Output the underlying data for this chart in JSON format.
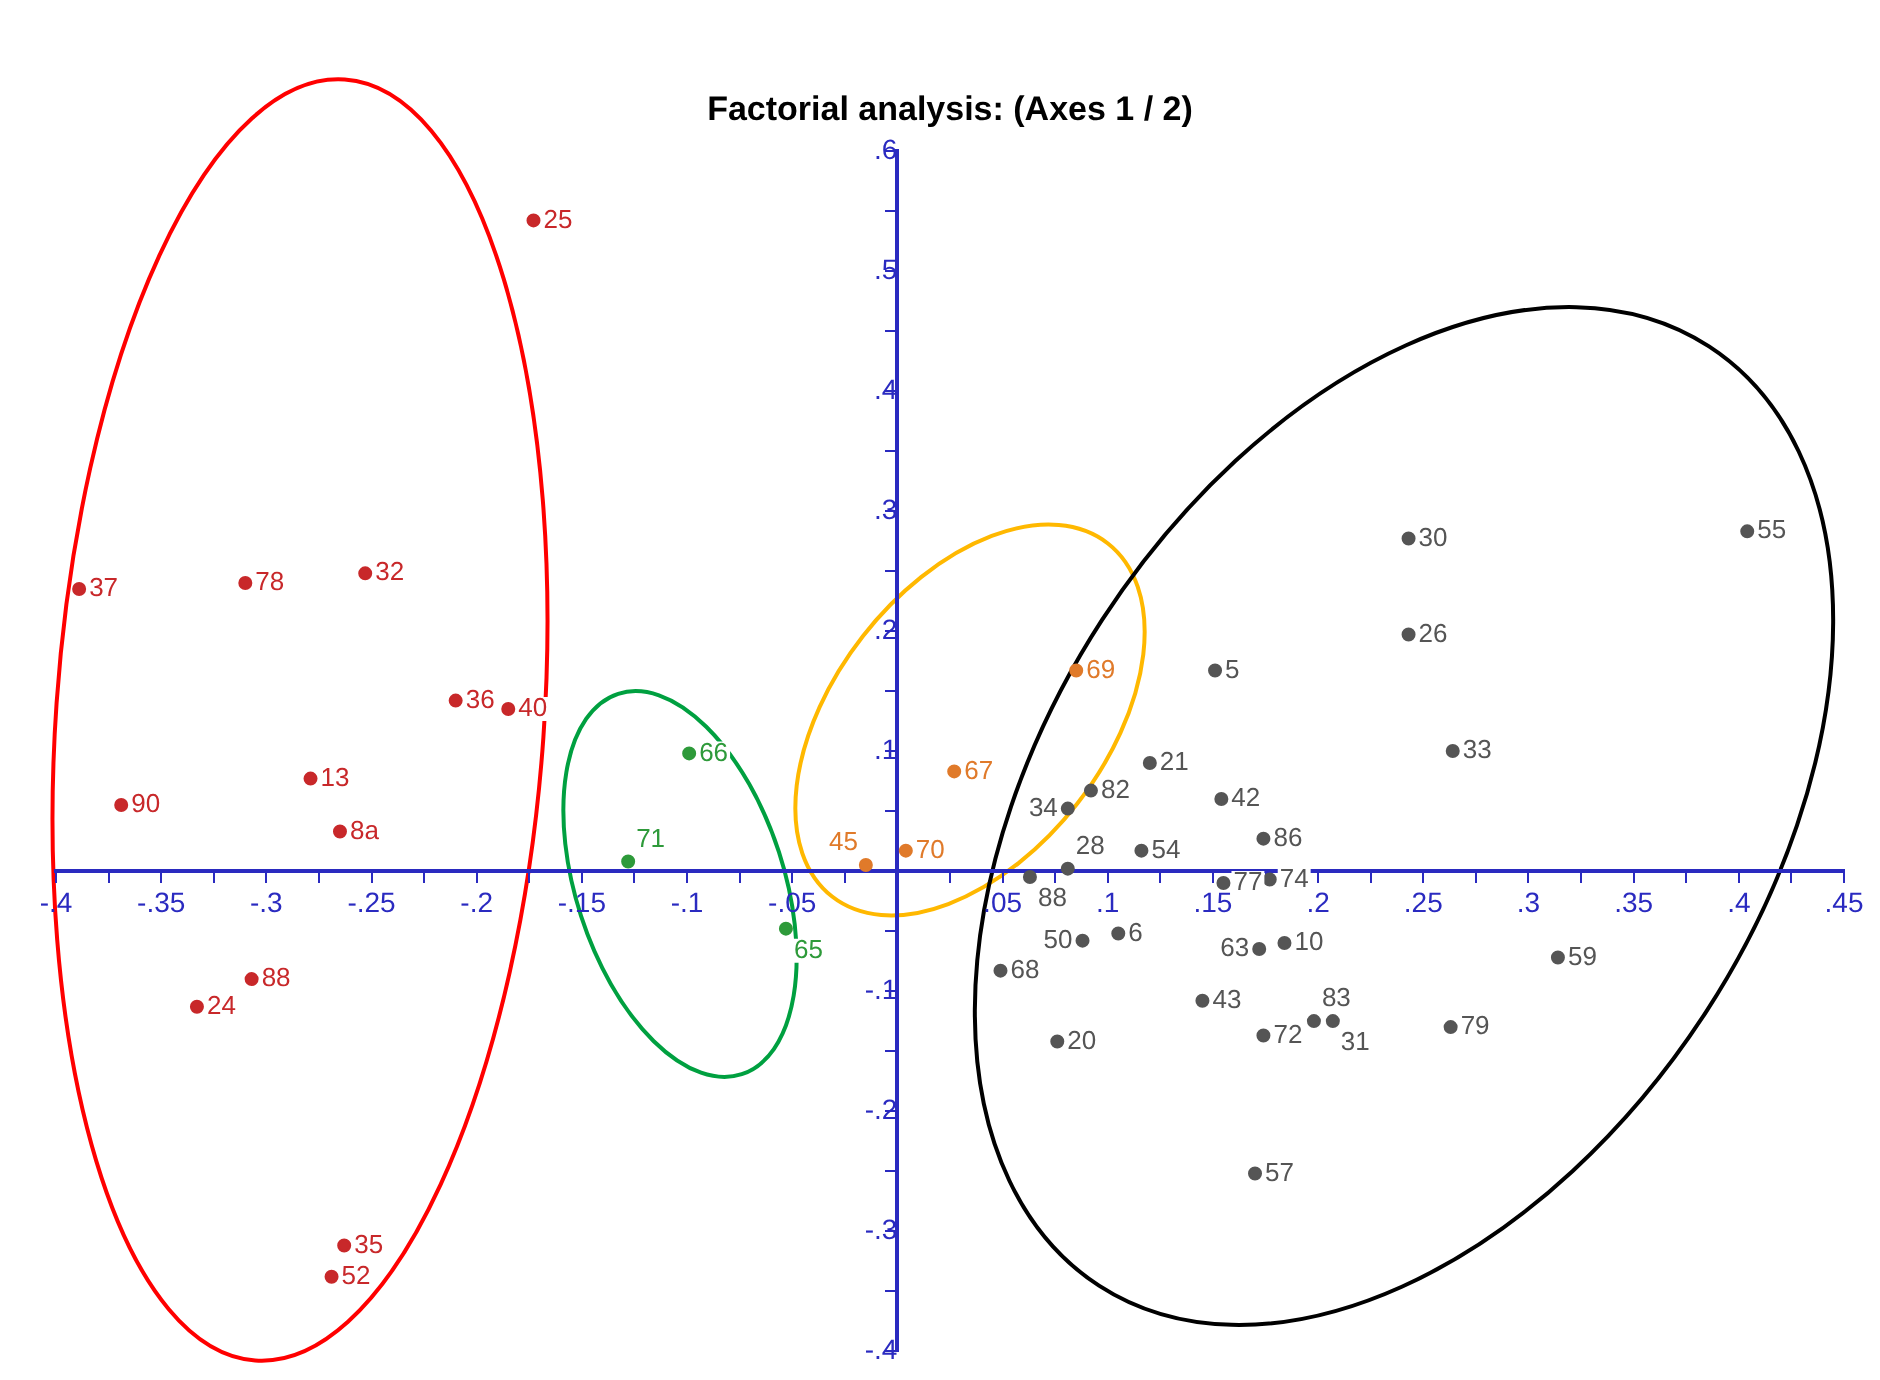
{
  "chart_data": {
    "type": "scatter",
    "title": "Factorial analysis: (Axes 1 / 2)",
    "marker": "circle",
    "grid": false,
    "legend": false,
    "xlim": [
      -0.4,
      0.45
    ],
    "xticks": [
      {
        "value": -0.4,
        "label": "-.4"
      },
      {
        "value": -0.375,
        "label": null
      },
      {
        "value": -0.35,
        "label": "-.35"
      },
      {
        "value": -0.325,
        "label": null
      },
      {
        "value": -0.3,
        "label": "-.3"
      },
      {
        "value": -0.275,
        "label": null
      },
      {
        "value": -0.25,
        "label": "-.25"
      },
      {
        "value": -0.225,
        "label": null
      },
      {
        "value": -0.2,
        "label": "-.2"
      },
      {
        "value": -0.175,
        "label": null
      },
      {
        "value": -0.15,
        "label": "-.15"
      },
      {
        "value": -0.125,
        "label": null
      },
      {
        "value": -0.1,
        "label": "-.1"
      },
      {
        "value": -0.075,
        "label": null
      },
      {
        "value": -0.05,
        "label": "-.05"
      },
      {
        "value": -0.025,
        "label": null
      },
      {
        "value": 0.025,
        "label": null
      },
      {
        "value": 0.05,
        "label": ".05"
      },
      {
        "value": 0.075,
        "label": null
      },
      {
        "value": 0.1,
        "label": ".1"
      },
      {
        "value": 0.125,
        "label": null
      },
      {
        "value": 0.15,
        "label": ".15"
      },
      {
        "value": 0.175,
        "label": null
      },
      {
        "value": 0.2,
        "label": ".2"
      },
      {
        "value": 0.225,
        "label": null
      },
      {
        "value": 0.25,
        "label": ".25"
      },
      {
        "value": 0.275,
        "label": null
      },
      {
        "value": 0.3,
        "label": ".3"
      },
      {
        "value": 0.325,
        "label": null
      },
      {
        "value": 0.35,
        "label": ".35"
      },
      {
        "value": 0.375,
        "label": null
      },
      {
        "value": 0.4,
        "label": ".4"
      },
      {
        "value": 0.425,
        "label": null
      },
      {
        "value": 0.45,
        "label": ".45"
      }
    ],
    "ylim": [
      -0.4,
      0.6
    ],
    "yticks": [
      {
        "value": -0.4,
        "label": "-.4"
      },
      {
        "value": -0.35,
        "label": null
      },
      {
        "value": -0.3,
        "label": "-.3"
      },
      {
        "value": -0.25,
        "label": null
      },
      {
        "value": -0.2,
        "label": "-.2"
      },
      {
        "value": -0.15,
        "label": null
      },
      {
        "value": -0.1,
        "label": "-.1"
      },
      {
        "value": -0.05,
        "label": null
      },
      {
        "value": 0.05,
        "label": null
      },
      {
        "value": 0.1,
        "label": ".1"
      },
      {
        "value": 0.15,
        "label": null
      },
      {
        "value": 0.2,
        "label": ".2"
      },
      {
        "value": 0.25,
        "label": null
      },
      {
        "value": 0.3,
        "label": ".3"
      },
      {
        "value": 0.35,
        "label": null
      },
      {
        "value": 0.4,
        "label": ".4"
      },
      {
        "value": 0.45,
        "label": null
      },
      {
        "value": 0.5,
        "label": ".5"
      },
      {
        "value": 0.55,
        "label": null
      },
      {
        "value": 0.6,
        "label": ".6"
      }
    ],
    "series": [
      {
        "color": "#c8282a",
        "x": [
          -0.173,
          -0.389,
          -0.31,
          -0.253,
          -0.21,
          -0.185,
          -0.369,
          -0.279,
          -0.265,
          -0.307,
          -0.333,
          -0.263,
          -0.269
        ],
        "values": [
          0.542,
          0.235,
          0.24,
          0.248,
          0.142,
          0.135,
          0.055,
          0.077,
          0.033,
          -0.09,
          -0.113,
          -0.312,
          -0.338
        ]
      },
      {
        "color": "#2e9a3a",
        "x": [
          -0.099,
          -0.128,
          -0.053
        ],
        "values": [
          0.098,
          0.008,
          -0.048
        ]
      },
      {
        "color": "#e07a2a",
        "x": [
          -0.015,
          0.004,
          0.027,
          0.085
        ],
        "values": [
          0.005,
          0.017,
          0.083,
          0.167
        ]
      },
      {
        "color": "#555555",
        "x": [
          0.151,
          0.243,
          0.12,
          0.092,
          0.081,
          0.154,
          0.116,
          0.081,
          0.174,
          0.063,
          0.155,
          0.177,
          0.088,
          0.105,
          0.049,
          0.076,
          0.172,
          0.184,
          0.145,
          0.174,
          0.198,
          0.207,
          0.263,
          0.17,
          0.243,
          0.404,
          0.264,
          0.314
        ],
        "values": [
          0.167,
          0.197,
          0.09,
          0.067,
          0.052,
          0.06,
          0.017,
          0.002,
          0.027,
          -0.005,
          -0.01,
          -0.007,
          -0.058,
          -0.052,
          -0.083,
          -0.142,
          -0.065,
          -0.06,
          -0.108,
          -0.137,
          -0.125,
          -0.125,
          -0.13,
          -0.252,
          0.277,
          0.283,
          0.1,
          -0.072
        ]
      }
    ],
    "annotations": [
      {
        "text": "25",
        "x": -0.173,
        "y": 0.542
      },
      {
        "text": "37",
        "x": -0.389,
        "y": 0.235
      },
      {
        "text": "78",
        "x": -0.31,
        "y": 0.24
      },
      {
        "text": "32",
        "x": -0.253,
        "y": 0.248
      },
      {
        "text": "36",
        "x": -0.21,
        "y": 0.142
      },
      {
        "text": "40",
        "x": -0.185,
        "y": 0.135
      },
      {
        "text": "90",
        "x": -0.369,
        "y": 0.055
      },
      {
        "text": "13",
        "x": -0.279,
        "y": 0.077
      },
      {
        "text": "8a",
        "x": -0.265,
        "y": 0.033
      },
      {
        "text": "88",
        "x": -0.307,
        "y": -0.09
      },
      {
        "text": "24",
        "x": -0.333,
        "y": -0.113
      },
      {
        "text": "35",
        "x": -0.263,
        "y": -0.312
      },
      {
        "text": "52",
        "x": -0.269,
        "y": -0.338
      },
      {
        "text": "66",
        "x": -0.099,
        "y": 0.098
      },
      {
        "text": "71",
        "x": -0.128,
        "y": 0.008
      },
      {
        "text": "65",
        "x": -0.053,
        "y": -0.048
      },
      {
        "text": "45",
        "x": -0.015,
        "y": 0.005
      },
      {
        "text": "70",
        "x": 0.004,
        "y": 0.017
      },
      {
        "text": "67",
        "x": 0.027,
        "y": 0.083
      },
      {
        "text": "69",
        "x": 0.085,
        "y": 0.167
      },
      {
        "text": "5",
        "x": 0.151,
        "y": 0.167
      },
      {
        "text": "26",
        "x": 0.243,
        "y": 0.197
      },
      {
        "text": "21",
        "x": 0.12,
        "y": 0.09
      },
      {
        "text": "82",
        "x": 0.092,
        "y": 0.067
      },
      {
        "text": "34",
        "x": 0.081,
        "y": 0.052
      },
      {
        "text": "42",
        "x": 0.154,
        "y": 0.06
      },
      {
        "text": "54",
        "x": 0.116,
        "y": 0.017
      },
      {
        "text": "28",
        "x": 0.081,
        "y": 0.002
      },
      {
        "text": "86",
        "x": 0.174,
        "y": 0.027
      },
      {
        "text": "88",
        "x": 0.063,
        "y": -0.005
      },
      {
        "text": "77",
        "x": 0.155,
        "y": -0.01
      },
      {
        "text": "74",
        "x": 0.177,
        "y": -0.007
      },
      {
        "text": "50",
        "x": 0.088,
        "y": -0.058
      },
      {
        "text": "6",
        "x": 0.105,
        "y": -0.052
      },
      {
        "text": "68",
        "x": 0.049,
        "y": -0.083
      },
      {
        "text": "20",
        "x": 0.076,
        "y": -0.142
      },
      {
        "text": "63",
        "x": 0.172,
        "y": -0.065
      },
      {
        "text": "10",
        "x": 0.184,
        "y": -0.06
      },
      {
        "text": "43",
        "x": 0.145,
        "y": -0.108
      },
      {
        "text": "72",
        "x": 0.174,
        "y": -0.137
      },
      {
        "text": "83",
        "x": 0.198,
        "y": -0.125
      },
      {
        "text": "31",
        "x": 0.207,
        "y": -0.125
      },
      {
        "text": "79",
        "x": 0.263,
        "y": -0.13
      },
      {
        "text": "57",
        "x": 0.17,
        "y": -0.252
      },
      {
        "text": "30",
        "x": 0.243,
        "y": 0.277
      },
      {
        "text": "55",
        "x": 0.404,
        "y": 0.283
      },
      {
        "text": "33",
        "x": 0.264,
        "y": 0.1
      },
      {
        "text": "59",
        "x": 0.314,
        "y": -0.072
      }
    ]
  }
}
